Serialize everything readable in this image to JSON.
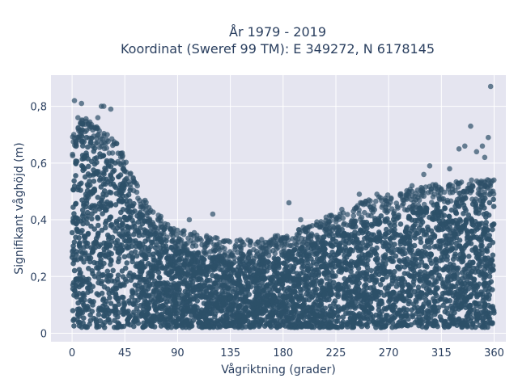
{
  "chart_data": {
    "type": "scatter",
    "title_line1": "År 1979 - 2019",
    "title_line2": "Koordinat (Sweref 99 TM): E 349272, N 6178145",
    "xlabel": "Vågriktning (grader)",
    "ylabel": "Signifikant våghöjd (m)",
    "xlim": [
      -18,
      370
    ],
    "ylim": [
      -0.03,
      0.91
    ],
    "x_ticks": [
      0,
      45,
      90,
      135,
      180,
      225,
      270,
      315,
      360
    ],
    "x_tick_labels": [
      "0",
      "45",
      "90",
      "135",
      "180",
      "225",
      "270",
      "315",
      "360"
    ],
    "y_ticks": [
      0,
      0.2,
      0.4,
      0.6,
      0.8
    ],
    "y_tick_labels": [
      "0",
      "0,2",
      "0,4",
      "0,6",
      "0,8"
    ],
    "grid": true,
    "background_color": "#e5e5f0",
    "marker_color": "#2d5068",
    "envelope": [
      [
        0,
        0.62
      ],
      [
        10,
        0.7
      ],
      [
        20,
        0.66
      ],
      [
        30,
        0.64
      ],
      [
        40,
        0.6
      ],
      [
        50,
        0.5
      ],
      [
        60,
        0.42
      ],
      [
        70,
        0.36
      ],
      [
        80,
        0.33
      ],
      [
        90,
        0.3
      ],
      [
        110,
        0.28
      ],
      [
        135,
        0.26
      ],
      [
        160,
        0.26
      ],
      [
        180,
        0.28
      ],
      [
        200,
        0.31
      ],
      [
        225,
        0.36
      ],
      [
        250,
        0.4
      ],
      [
        270,
        0.42
      ],
      [
        290,
        0.44
      ],
      [
        315,
        0.46
      ],
      [
        340,
        0.47
      ],
      [
        360,
        0.48
      ]
    ],
    "outliers": [
      [
        2,
        0.82
      ],
      [
        8,
        0.81
      ],
      [
        5,
        0.76
      ],
      [
        25,
        0.8
      ],
      [
        27,
        0.8
      ],
      [
        33,
        0.79
      ],
      [
        22,
        0.76
      ],
      [
        30,
        0.7
      ],
      [
        14,
        0.74
      ],
      [
        120,
        0.42
      ],
      [
        100,
        0.4
      ],
      [
        185,
        0.46
      ],
      [
        195,
        0.4
      ],
      [
        245,
        0.49
      ],
      [
        260,
        0.49
      ],
      [
        290,
        0.52
      ],
      [
        305,
        0.59
      ],
      [
        300,
        0.56
      ],
      [
        340,
        0.73
      ],
      [
        335,
        0.66
      ],
      [
        330,
        0.65
      ],
      [
        322,
        0.58
      ],
      [
        345,
        0.64
      ],
      [
        350,
        0.66
      ],
      [
        355,
        0.69
      ],
      [
        357,
        0.87
      ],
      [
        352,
        0.62
      ]
    ]
  }
}
